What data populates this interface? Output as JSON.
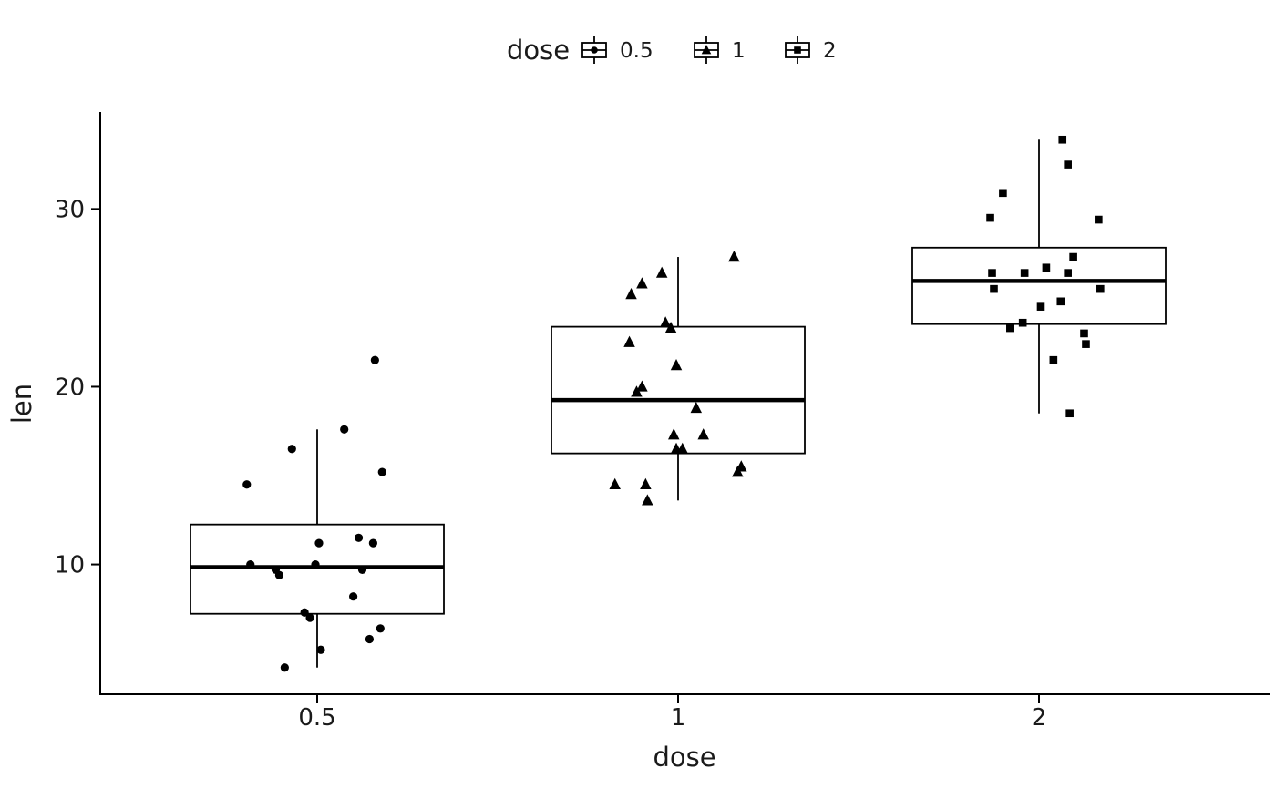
{
  "colors": {
    "geom": "#000000",
    "background": "#ffffff",
    "text": "#1a1a1a"
  },
  "chart_data": {
    "type": "boxplot",
    "title": "",
    "xlabel": "dose",
    "ylabel": "len",
    "grid": "off",
    "x_categories": [
      "0.5",
      "1",
      "2"
    ],
    "y_ticks": [
      10,
      20,
      30
    ],
    "y_domain": [
      2.7,
      35.4
    ],
    "legend": {
      "position": "top",
      "title": "dose",
      "entries": [
        {
          "label": "0.5",
          "shape": "circle"
        },
        {
          "label": "1",
          "shape": "triangle"
        },
        {
          "label": "2",
          "shape": "square"
        }
      ]
    },
    "groups": [
      {
        "category": "0.5",
        "shape": "circle",
        "stats": {
          "lower_whisker": 4.2,
          "q1": 7.225,
          "median": 9.85,
          "q3": 12.25,
          "upper_whisker": 17.6
        },
        "points": [
          [
            4.2,
            -0.09
          ],
          [
            5.2,
            0.01
          ],
          [
            5.8,
            0.145
          ],
          [
            6.4,
            0.175
          ],
          [
            7.0,
            -0.02
          ],
          [
            7.3,
            -0.035
          ],
          [
            8.2,
            0.1
          ],
          [
            9.4,
            -0.105
          ],
          [
            9.7,
            -0.115
          ],
          [
            9.7,
            0.125
          ],
          [
            10.0,
            -0.185
          ],
          [
            10.0,
            -0.005
          ],
          [
            11.2,
            0.005
          ],
          [
            11.2,
            0.155
          ],
          [
            11.5,
            0.115
          ],
          [
            14.5,
            -0.195
          ],
          [
            15.2,
            0.18
          ],
          [
            16.5,
            -0.07
          ],
          [
            17.6,
            0.075
          ],
          [
            21.5,
            0.16
          ]
        ]
      },
      {
        "category": "1",
        "shape": "triangle",
        "stats": {
          "lower_whisker": 13.6,
          "q1": 16.25,
          "median": 19.25,
          "q3": 23.375,
          "upper_whisker": 27.3
        },
        "points": [
          [
            13.6,
            -0.085
          ],
          [
            14.5,
            -0.175
          ],
          [
            14.5,
            -0.09
          ],
          [
            15.2,
            0.165
          ],
          [
            15.5,
            0.175
          ],
          [
            16.5,
            -0.005
          ],
          [
            16.5,
            0.012
          ],
          [
            17.3,
            -0.012
          ],
          [
            17.3,
            0.07
          ],
          [
            18.8,
            0.05
          ],
          [
            19.7,
            -0.115
          ],
          [
            20.0,
            -0.1
          ],
          [
            21.2,
            -0.005
          ],
          [
            22.5,
            -0.135
          ],
          [
            23.3,
            -0.02
          ],
          [
            23.6,
            -0.035
          ],
          [
            25.2,
            -0.13
          ],
          [
            25.8,
            -0.1
          ],
          [
            26.4,
            -0.045
          ],
          [
            27.3,
            0.155
          ]
        ]
      },
      {
        "category": "2",
        "shape": "square",
        "stats": {
          "lower_whisker": 18.5,
          "q1": 23.525,
          "median": 25.95,
          "q3": 27.825,
          "upper_whisker": 33.9
        },
        "points": [
          [
            18.5,
            0.085
          ],
          [
            21.5,
            0.04
          ],
          [
            22.4,
            0.13
          ],
          [
            23.0,
            0.125
          ],
          [
            23.3,
            -0.08
          ],
          [
            23.6,
            -0.045
          ],
          [
            24.5,
            0.005
          ],
          [
            24.8,
            0.06
          ],
          [
            25.5,
            -0.125
          ],
          [
            25.5,
            0.17
          ],
          [
            26.4,
            -0.13
          ],
          [
            26.4,
            -0.04
          ],
          [
            26.4,
            0.08
          ],
          [
            26.7,
            0.02
          ],
          [
            27.3,
            0.095
          ],
          [
            29.4,
            0.165
          ],
          [
            29.5,
            -0.135
          ],
          [
            30.9,
            -0.1
          ],
          [
            32.5,
            0.08
          ],
          [
            33.9,
            0.065
          ]
        ]
      }
    ]
  }
}
